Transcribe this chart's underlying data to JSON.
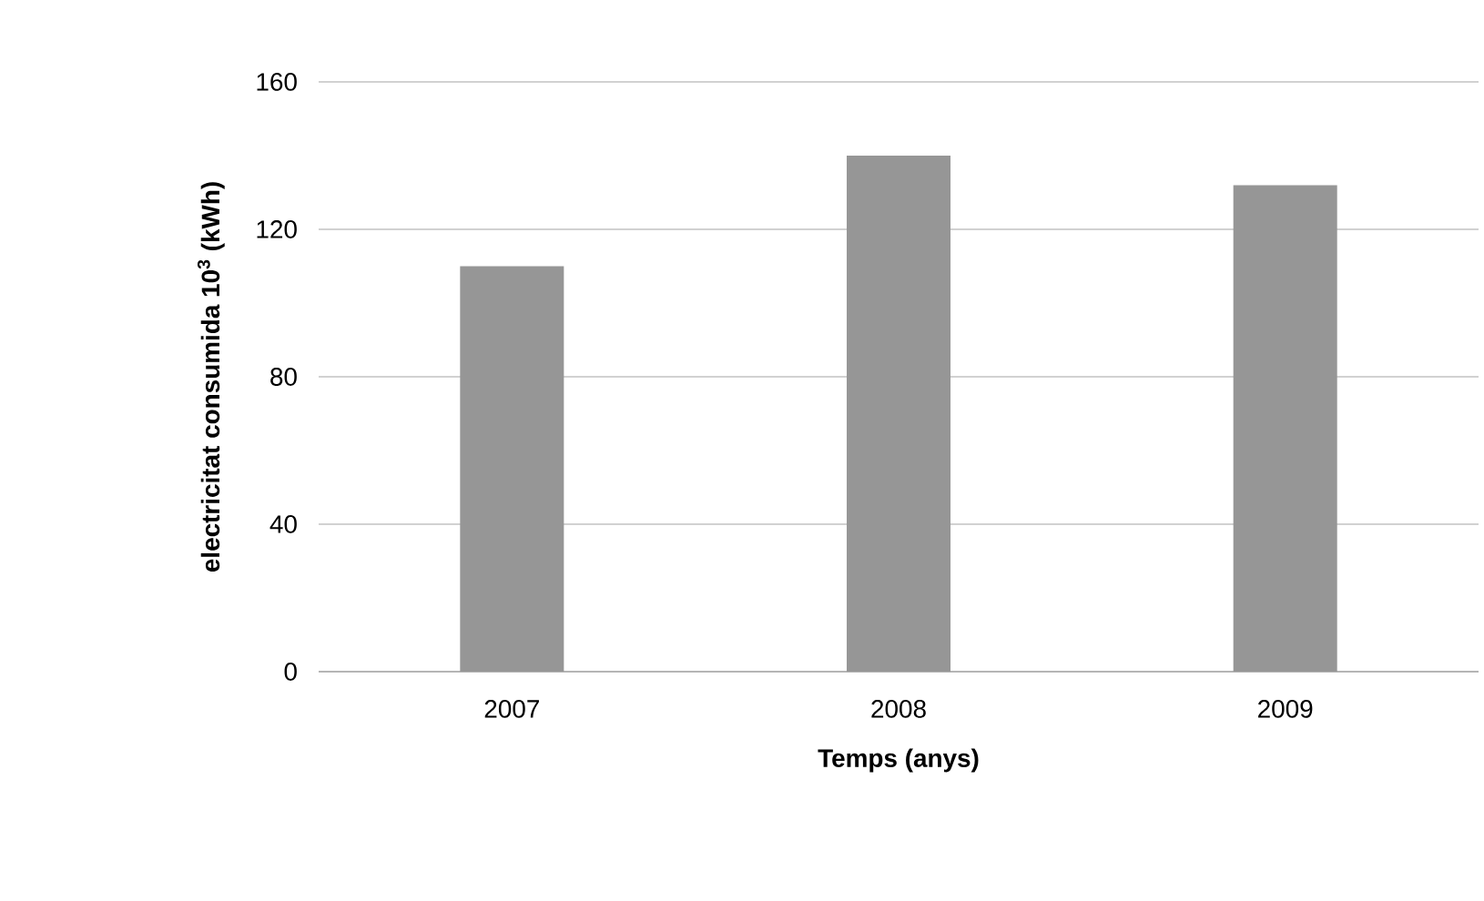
{
  "chart_data": {
    "type": "bar",
    "xlabel": "Temps (anys)",
    "ylabel": "electricitat consumida 10$^{3}$ (kWh)",
    "categories": [
      "2007",
      "2008",
      "2009"
    ],
    "values": [
      110,
      140,
      132
    ],
    "color": "#969696",
    "ylim": [
      0,
      160
    ],
    "yticks": [
      0,
      40,
      80,
      120,
      160
    ],
    "grid": "y"
  }
}
